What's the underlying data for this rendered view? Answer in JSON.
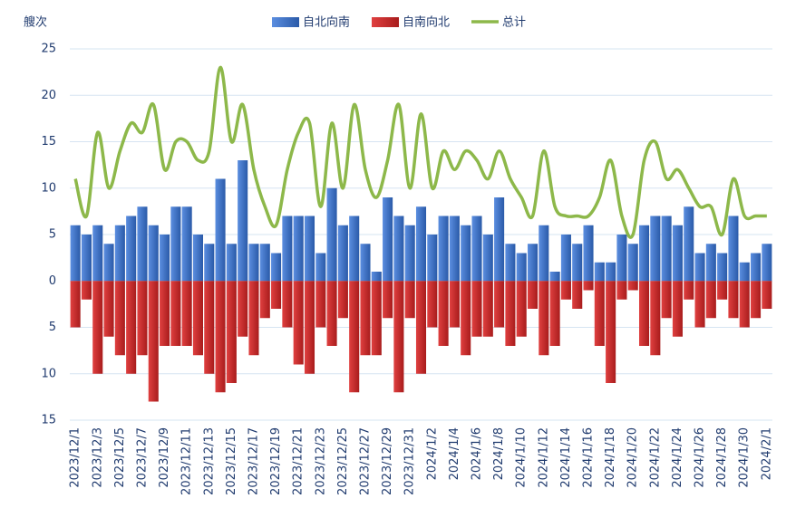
{
  "chart_data": {
    "type": "bar-line",
    "y_label": "艘次",
    "categories": [
      "2023/12/1",
      null,
      "2023/12/3",
      null,
      "2023/12/5",
      null,
      "2023/12/7",
      null,
      "2023/12/9",
      null,
      "2023/12/11",
      null,
      "2023/12/13",
      null,
      "2023/12/15",
      null,
      "2023/12/17",
      null,
      "2023/12/19",
      null,
      "2023/12/21",
      null,
      "2023/12/23",
      null,
      "2023/12/25",
      null,
      "2023/12/27",
      null,
      "2023/12/29",
      null,
      "2023/12/31",
      null,
      "2024/1/2",
      null,
      "2024/1/4",
      null,
      "2024/1/6",
      null,
      "2024/1/8",
      null,
      "2024/1/10",
      null,
      "2024/1/12",
      null,
      "2024/1/14",
      null,
      "2024/1/16",
      null,
      "2024/1/18",
      null,
      "2024/1/20",
      null,
      "2024/1/22",
      null,
      "2024/1/24",
      null,
      "2024/1/26",
      null,
      "2024/1/28",
      null,
      "2024/1/30",
      null,
      "2024/2/1"
    ],
    "series": [
      {
        "name": "自北向南",
        "color": "#3a6fc4",
        "kind": "bar",
        "values": [
          6,
          5,
          6,
          4,
          6,
          7,
          8,
          6,
          5,
          8,
          8,
          5,
          4,
          11,
          4,
          13,
          4,
          4,
          3,
          7,
          7,
          7,
          3,
          10,
          6,
          7,
          4,
          1,
          9,
          7,
          6,
          8,
          5,
          7,
          7,
          6,
          7,
          5,
          9,
          4,
          3,
          4,
          6,
          1,
          5,
          4,
          6,
          2,
          2,
          5,
          4,
          6,
          7,
          7,
          6,
          8,
          3,
          4,
          3,
          7,
          2,
          3,
          4
        ]
      },
      {
        "name": "自南向北",
        "color": "#c92a2a",
        "kind": "bar",
        "values": [
          -5,
          -2,
          -10,
          -6,
          -8,
          -10,
          -8,
          -13,
          -7,
          -7,
          -7,
          -8,
          -10,
          -12,
          -11,
          -6,
          -8,
          -4,
          -3,
          -5,
          -9,
          -10,
          -5,
          -7,
          -4,
          -12,
          -8,
          -8,
          -4,
          -12,
          -4,
          -10,
          -5,
          -7,
          -5,
          -8,
          -6,
          -6,
          -5,
          -7,
          -6,
          -3,
          -8,
          -7,
          -2,
          -3,
          -1,
          -7,
          -11,
          -2,
          -1,
          -7,
          -8,
          -4,
          -6,
          -2,
          -5,
          -4,
          -2,
          -4,
          -5,
          -4,
          -3
        ]
      },
      {
        "name": "总计",
        "color": "#8db84a",
        "kind": "line",
        "values": [
          11,
          7,
          16,
          10,
          14,
          17,
          16,
          19,
          12,
          15,
          15,
          13,
          14,
          23,
          15,
          19,
          12,
          8,
          6,
          12,
          16,
          17,
          8,
          17,
          10,
          19,
          12,
          9,
          13,
          19,
          10,
          18,
          10,
          14,
          12,
          14,
          13,
          11,
          14,
          11,
          9,
          7,
          14,
          8,
          7,
          7,
          7,
          9,
          13,
          7,
          5,
          13,
          15,
          11,
          12,
          10,
          8,
          8,
          5,
          11,
          7,
          7,
          7
        ]
      }
    ],
    "ylim": [
      -15,
      25
    ],
    "yticks": [
      25,
      20,
      15,
      10,
      5,
      0,
      {
        "value": -5,
        "label": "5"
      },
      {
        "value": -10,
        "label": "10"
      },
      {
        "value": -15,
        "label": "15"
      }
    ],
    "grid": true
  }
}
